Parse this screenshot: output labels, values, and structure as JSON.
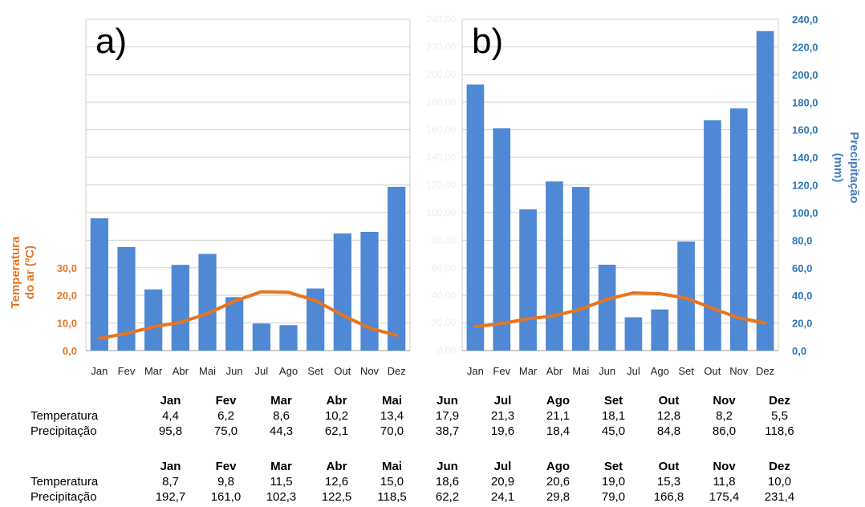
{
  "chart_data": [
    {
      "type": "bar",
      "panel_label": "a)",
      "categories": [
        "Jan",
        "Fev",
        "Mar",
        "Abr",
        "Mai",
        "Jun",
        "Jul",
        "Ago",
        "Set",
        "Out",
        "Nov",
        "Dez"
      ],
      "series": [
        {
          "name": "Precipitação",
          "kind": "bar",
          "axis": "right",
          "color": "#4F88D4",
          "values": [
            95.8,
            75.0,
            44.3,
            62.1,
            70.0,
            38.7,
            19.6,
            18.4,
            45.0,
            84.8,
            86.0,
            118.6
          ]
        },
        {
          "name": "Temperatura",
          "kind": "line",
          "axis": "left",
          "color": "#E8741F",
          "values": [
            4.4,
            6.2,
            8.6,
            10.2,
            13.4,
            17.9,
            21.3,
            21.1,
            18.1,
            12.8,
            8.2,
            5.5
          ]
        }
      ],
      "ylabel_left": "Temperatura do ar (ºC)",
      "ylim_left": [
        0,
        120
      ],
      "yticks_left": [
        "0,0",
        "10,0",
        "20,0",
        "30,0"
      ],
      "ylim_right": [
        0,
        240
      ],
      "grid": true
    },
    {
      "type": "bar",
      "panel_label": "b)",
      "categories": [
        "Jan",
        "Fev",
        "Mar",
        "Abr",
        "Mai",
        "Jun",
        "Jul",
        "Ago",
        "Set",
        "Out",
        "Nov",
        "Dez"
      ],
      "series": [
        {
          "name": "Precipitação",
          "kind": "bar",
          "axis": "right",
          "color": "#4F88D4",
          "values": [
            192.7,
            161.0,
            102.3,
            122.5,
            118.5,
            62.2,
            24.1,
            29.8,
            79.0,
            166.8,
            175.4,
            231.4
          ]
        },
        {
          "name": "Temperatura",
          "kind": "line",
          "axis": "left",
          "color": "#E8741F",
          "values": [
            8.7,
            9.8,
            11.5,
            12.6,
            15.0,
            18.6,
            20.9,
            20.6,
            19.0,
            15.3,
            11.8,
            10.0
          ]
        }
      ],
      "ylabel_right": "Precipitação (mm)",
      "ylim_right": [
        0,
        240
      ],
      "yticks_right": [
        "0,0",
        "20,0",
        "40,0",
        "60,0",
        "80,0",
        "100,0",
        "120,0",
        "140,0",
        "160,0",
        "180,0",
        "200,0",
        "220,0",
        "240,0"
      ],
      "ylim_left": [
        0,
        120
      ],
      "ghost_ticks_left": [
        "0,00",
        "20,00",
        "40,00",
        "60,00",
        "80,00",
        "100,00",
        "120,00",
        "140,00",
        "160,00",
        "180,00",
        "200,00",
        "220,00",
        "240,00"
      ],
      "grid": true
    }
  ],
  "tables": [
    {
      "header": [
        "Jan",
        "Fev",
        "Mar",
        "Abr",
        "Mai",
        "Jun",
        "Jul",
        "Ago",
        "Set",
        "Out",
        "Nov",
        "Dez"
      ],
      "rows": [
        {
          "label": "Temperatura",
          "values": [
            "4,4",
            "6,2",
            "8,6",
            "10,2",
            "13,4",
            "17,9",
            "21,3",
            "21,1",
            "18,1",
            "12,8",
            "8,2",
            "5,5"
          ]
        },
        {
          "label": "Precipitação",
          "values": [
            "95,8",
            "75,0",
            "44,3",
            "62,1",
            "70,0",
            "38,7",
            "19,6",
            "18,4",
            "45,0",
            "84,8",
            "86,0",
            "118,6"
          ]
        }
      ]
    },
    {
      "header": [
        "Jan",
        "Fev",
        "Mar",
        "Abr",
        "Mai",
        "Jun",
        "Jul",
        "Ago",
        "Set",
        "Out",
        "Nov",
        "Dez"
      ],
      "rows": [
        {
          "label": "Temperatura",
          "values": [
            "8,7",
            "9,8",
            "11,5",
            "12,6",
            "15,0",
            "18,6",
            "20,9",
            "20,6",
            "19,0",
            "15,3",
            "11,8",
            "10,0"
          ]
        },
        {
          "label": "Precipitação",
          "values": [
            "192,7",
            "161,0",
            "102,3",
            "122,5",
            "118,5",
            "62,2",
            "24,1",
            "29,8",
            "79,0",
            "166,8",
            "175,4",
            "231,4"
          ]
        }
      ]
    }
  ]
}
